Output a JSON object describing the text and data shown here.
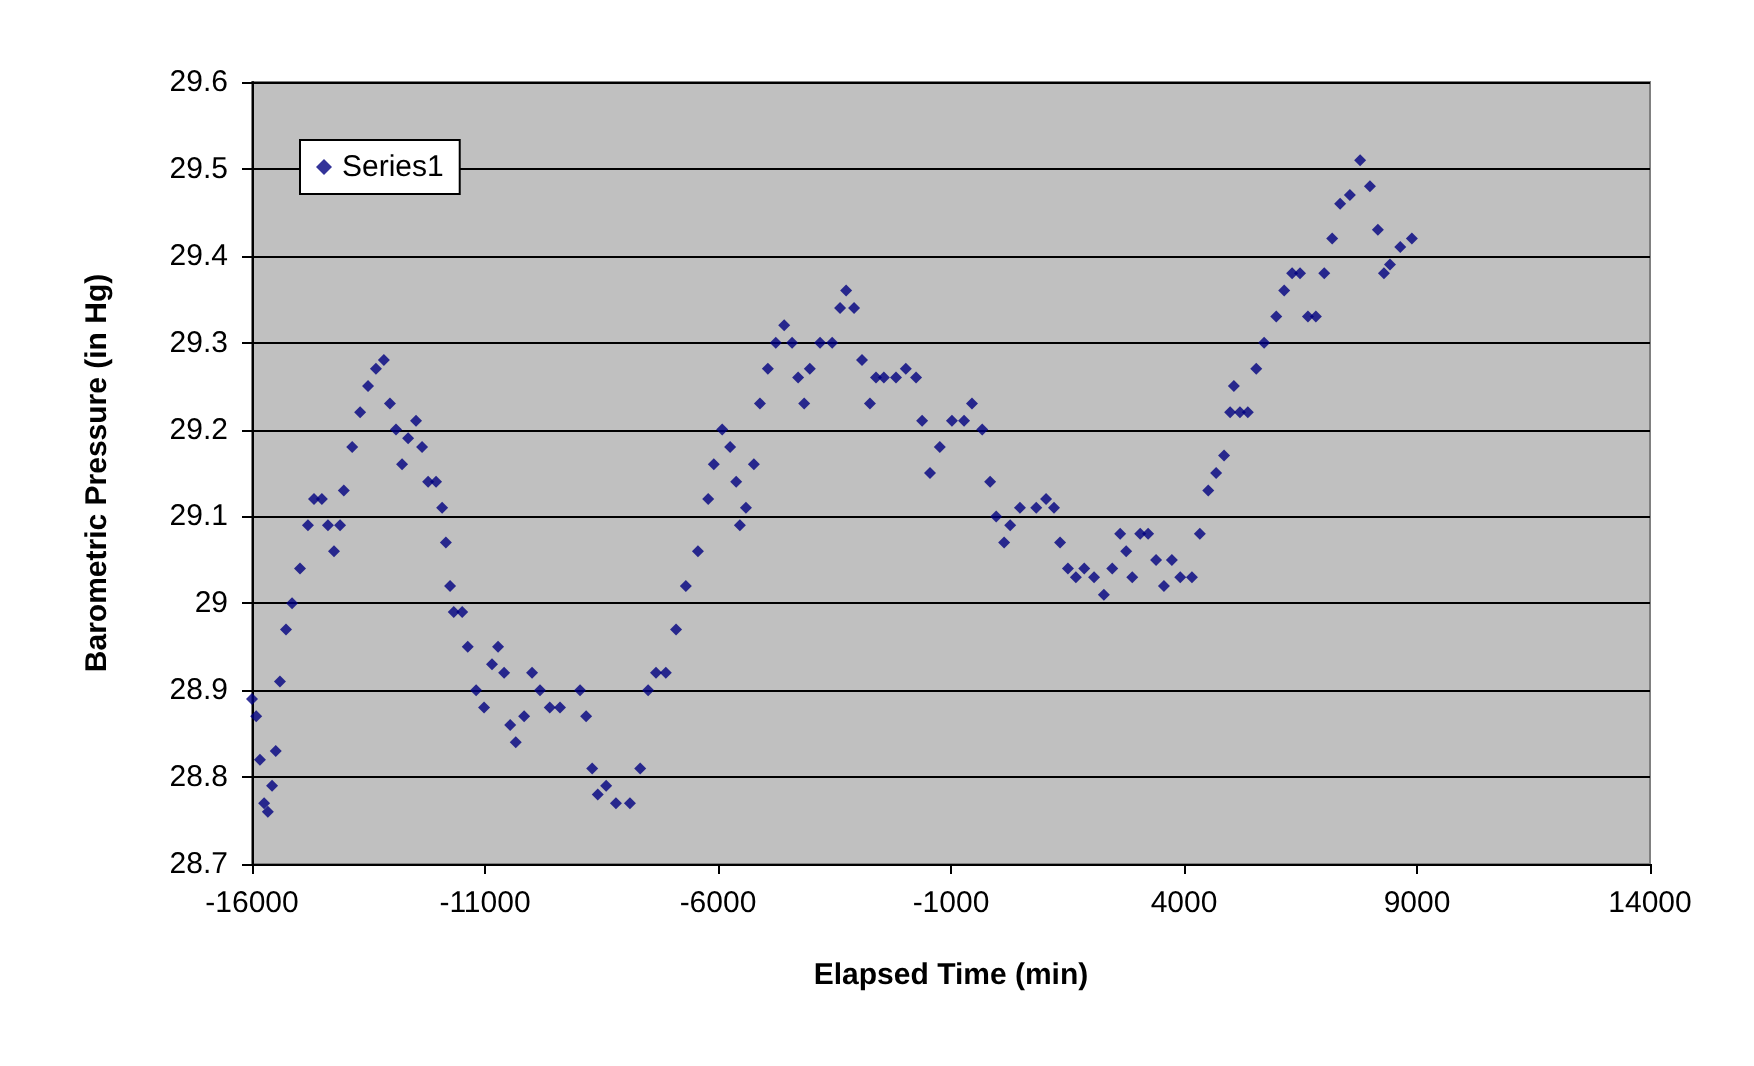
{
  "chart_data": {
    "type": "scatter",
    "xlabel": "Elapsed Time (min)",
    "ylabel": "Barometric Pressure (in Hg)",
    "xlim": [
      -16000,
      14000
    ],
    "xticks": [
      -16000,
      -11000,
      -6000,
      -1000,
      4000,
      9000,
      14000
    ],
    "ylim": [
      28.7,
      29.6
    ],
    "yticks": [
      28.7,
      28.8,
      28.9,
      29,
      29.1,
      29.2,
      29.3,
      29.4,
      29.5,
      29.6
    ],
    "grid": "y",
    "legend": "top left",
    "marker": "diamond",
    "series": [
      {
        "name": "Series1",
        "color": "#000080",
        "x": [
          -16000,
          -15910,
          -15830,
          -15740,
          -15660,
          -15570,
          -15490,
          -15400,
          -15270,
          -15140,
          -14970,
          -14800,
          -14670,
          -14500,
          -14370,
          -14240,
          -14110,
          -14030,
          -13850,
          -13680,
          -13510,
          -13340,
          -13170,
          -13040,
          -12910,
          -12780,
          -12650,
          -12480,
          -12350,
          -12220,
          -12050,
          -11920,
          -11840,
          -11750,
          -11670,
          -11490,
          -11370,
          -11190,
          -11020,
          -10850,
          -10720,
          -10590,
          -10460,
          -10340,
          -10160,
          -9990,
          -9820,
          -9610,
          -9390,
          -8960,
          -8830,
          -8700,
          -8580,
          -8400,
          -8190,
          -7890,
          -7670,
          -7500,
          -7330,
          -7120,
          -6900,
          -6690,
          -6430,
          -6210,
          -6090,
          -5910,
          -5740,
          -5610,
          -5530,
          -5400,
          -5230,
          -5100,
          -4930,
          -4760,
          -4580,
          -4410,
          -4280,
          -4150,
          -4030,
          -3810,
          -3550,
          -3380,
          -3250,
          -3080,
          -2910,
          -2740,
          -2610,
          -2440,
          -2180,
          -1970,
          -1750,
          -1620,
          -1450,
          -1240,
          -980,
          -720,
          -550,
          -330,
          -160,
          -30,
          140,
          270,
          480,
          830,
          1040,
          1210,
          1340,
          1510,
          1680,
          1860,
          2070,
          2280,
          2460,
          2630,
          2760,
          2890,
          3060,
          3230,
          3400,
          3570,
          3740,
          3920,
          4170,
          4340,
          4520,
          4690,
          4860,
          4990,
          5070,
          5200,
          5370,
          5550,
          5720,
          5980,
          6150,
          6320,
          6490,
          6660,
          6830,
          7010,
          7180,
          7350,
          7560,
          7780,
          7990,
          8160,
          8290,
          8420,
          8640,
          8890
        ],
        "values": [
          28.89,
          28.87,
          28.82,
          28.77,
          28.76,
          28.79,
          28.83,
          28.91,
          28.97,
          29.0,
          29.04,
          29.09,
          29.12,
          29.12,
          29.09,
          29.06,
          29.09,
          29.13,
          29.18,
          29.22,
          29.25,
          29.27,
          29.28,
          29.23,
          29.2,
          29.16,
          29.19,
          29.21,
          29.18,
          29.14,
          29.14,
          29.11,
          29.07,
          29.02,
          28.99,
          28.99,
          28.95,
          28.9,
          28.88,
          28.93,
          28.95,
          28.92,
          28.86,
          28.84,
          28.87,
          28.92,
          28.9,
          28.88,
          28.88,
          28.9,
          28.87,
          28.81,
          28.78,
          28.79,
          28.77,
          28.77,
          28.81,
          28.9,
          28.92,
          28.92,
          28.97,
          29.02,
          29.06,
          29.12,
          29.16,
          29.2,
          29.18,
          29.14,
          29.09,
          29.11,
          29.16,
          29.23,
          29.27,
          29.3,
          29.32,
          29.3,
          29.26,
          29.23,
          29.27,
          29.3,
          29.3,
          29.34,
          29.36,
          29.34,
          29.28,
          29.23,
          29.26,
          29.26,
          29.26,
          29.27,
          29.26,
          29.21,
          29.15,
          29.18,
          29.21,
          29.21,
          29.23,
          29.2,
          29.14,
          29.1,
          29.07,
          29.09,
          29.11,
          29.11,
          29.12,
          29.11,
          29.07,
          29.04,
          29.03,
          29.04,
          29.03,
          29.01,
          29.04,
          29.08,
          29.06,
          29.03,
          29.08,
          29.08,
          29.05,
          29.02,
          29.05,
          29.03,
          29.03,
          29.08,
          29.13,
          29.15,
          29.17,
          29.22,
          29.25,
          29.22,
          29.22,
          29.27,
          29.3,
          29.33,
          29.36,
          29.38,
          29.38,
          29.33,
          29.33,
          29.38,
          29.42,
          29.46,
          29.47,
          29.51,
          29.48,
          29.43,
          29.38,
          29.39,
          29.41,
          29.42
        ]
      }
    ]
  }
}
